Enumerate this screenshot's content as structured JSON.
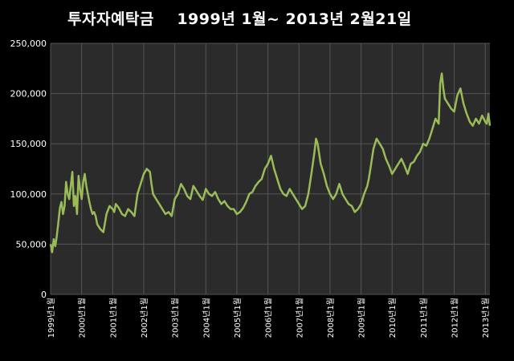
{
  "chart_data": {
    "type": "line",
    "title": "투자자예탁금    1999년 1월~ 2013년 2월21일",
    "xlabel": "",
    "ylabel": "",
    "ylim": [
      0,
      250000
    ],
    "yticks": [
      "0",
      "50,000",
      "100,000",
      "150,000",
      "200,000",
      "250,000"
    ],
    "xticks": [
      "1999년1월",
      "2000년1월",
      "2001년1월",
      "2002년1월",
      "2003년1월",
      "2004년1월",
      "2005년1월",
      "2006년1월",
      "2007년1월",
      "2008년1월",
      "2009년1월",
      "2010년1월",
      "2011년1월",
      "2012년1월",
      "2013년1월"
    ],
    "grid": true,
    "legend": "none",
    "colors": {
      "line": "#9bbb59",
      "plot_bg": "#2b2b2b",
      "grid": "#555555",
      "page_bg": "#000000",
      "text": "#ffffff"
    },
    "x_range": [
      1999.0,
      2013.15
    ],
    "series": [
      {
        "x": [
          1999.0,
          1999.05,
          1999.1,
          1999.15,
          1999.2,
          1999.25,
          1999.3,
          1999.35,
          1999.4,
          1999.45,
          1999.5,
          1999.55,
          1999.6,
          1999.65,
          1999.7,
          1999.75,
          1999.8,
          1999.85,
          1999.9,
          1999.95,
          2000.0,
          2000.05,
          2000.1,
          2000.15,
          2000.2,
          2000.25,
          2000.3,
          2000.35,
          2000.4,
          2000.45,
          2000.5,
          2000.6,
          2000.7,
          2000.8,
          2000.9,
          2001.0,
          2001.05,
          2001.1,
          2001.2,
          2001.3,
          2001.4,
          2001.5,
          2001.6,
          2001.7,
          2001.8,
          2001.9,
          2002.0,
          2002.1,
          2002.2,
          2002.25,
          2002.3,
          2002.4,
          2002.5,
          2002.6,
          2002.7,
          2002.8,
          2002.9,
          2003.0,
          2003.1,
          2003.2,
          2003.3,
          2003.4,
          2003.5,
          2003.6,
          2003.7,
          2003.8,
          2003.9,
          2004.0,
          2004.1,
          2004.2,
          2004.3,
          2004.4,
          2004.5,
          2004.6,
          2004.7,
          2004.8,
          2004.9,
          2005.0,
          2005.1,
          2005.2,
          2005.3,
          2005.4,
          2005.5,
          2005.6,
          2005.7,
          2005.8,
          2005.9,
          2006.0,
          2006.1,
          2006.2,
          2006.3,
          2006.4,
          2006.5,
          2006.6,
          2006.7,
          2006.8,
          2006.9,
          2007.0,
          2007.1,
          2007.2,
          2007.3,
          2007.4,
          2007.5,
          2007.55,
          2007.6,
          2007.7,
          2007.8,
          2007.9,
          2008.0,
          2008.1,
          2008.2,
          2008.3,
          2008.4,
          2008.5,
          2008.6,
          2008.7,
          2008.8,
          2008.9,
          2009.0,
          2009.1,
          2009.2,
          2009.25,
          2009.3,
          2009.4,
          2009.5,
          2009.6,
          2009.7,
          2009.8,
          2009.9,
          2010.0,
          2010.1,
          2010.2,
          2010.3,
          2010.4,
          2010.5,
          2010.6,
          2010.7,
          2010.8,
          2010.9,
          2011.0,
          2011.1,
          2011.2,
          2011.3,
          2011.4,
          2011.5,
          2011.55,
          2011.6,
          2011.65,
          2011.7,
          2011.8,
          2011.9,
          2012.0,
          2012.1,
          2012.2,
          2012.3,
          2012.4,
          2012.5,
          2012.6,
          2012.7,
          2012.8,
          2012.9,
          2013.0,
          2013.05,
          2013.1,
          2013.15
        ],
        "y": [
          50000,
          42000,
          55000,
          48000,
          58000,
          72000,
          86000,
          92000,
          80000,
          88000,
          112000,
          100000,
          95000,
          108000,
          122000,
          88000,
          98000,
          80000,
          118000,
          105000,
          95000,
          112000,
          120000,
          108000,
          100000,
          92000,
          85000,
          80000,
          82000,
          78000,
          70000,
          65000,
          62000,
          80000,
          88000,
          85000,
          82000,
          90000,
          86000,
          80000,
          78000,
          85000,
          82000,
          78000,
          100000,
          110000,
          120000,
          125000,
          122000,
          110000,
          100000,
          95000,
          90000,
          85000,
          80000,
          82000,
          78000,
          95000,
          100000,
          110000,
          105000,
          98000,
          95000,
          108000,
          103000,
          98000,
          94000,
          105000,
          100000,
          98000,
          102000,
          95000,
          90000,
          93000,
          88000,
          85000,
          85000,
          80000,
          82000,
          86000,
          92000,
          100000,
          102000,
          108000,
          112000,
          115000,
          125000,
          130000,
          138000,
          125000,
          115000,
          105000,
          100000,
          98000,
          105000,
          100000,
          95000,
          90000,
          85000,
          88000,
          100000,
          120000,
          142000,
          155000,
          150000,
          130000,
          120000,
          108000,
          100000,
          95000,
          100000,
          110000,
          100000,
          95000,
          90000,
          88000,
          82000,
          85000,
          90000,
          100000,
          108000,
          115000,
          125000,
          145000,
          155000,
          150000,
          145000,
          135000,
          128000,
          120000,
          125000,
          130000,
          135000,
          128000,
          120000,
          130000,
          132000,
          138000,
          142000,
          150000,
          148000,
          155000,
          165000,
          175000,
          170000,
          210000,
          220000,
          205000,
          195000,
          190000,
          185000,
          182000,
          198000,
          205000,
          190000,
          180000,
          172000,
          168000,
          175000,
          170000,
          178000,
          172000,
          170000,
          180000,
          168000
        ]
      }
    ]
  }
}
